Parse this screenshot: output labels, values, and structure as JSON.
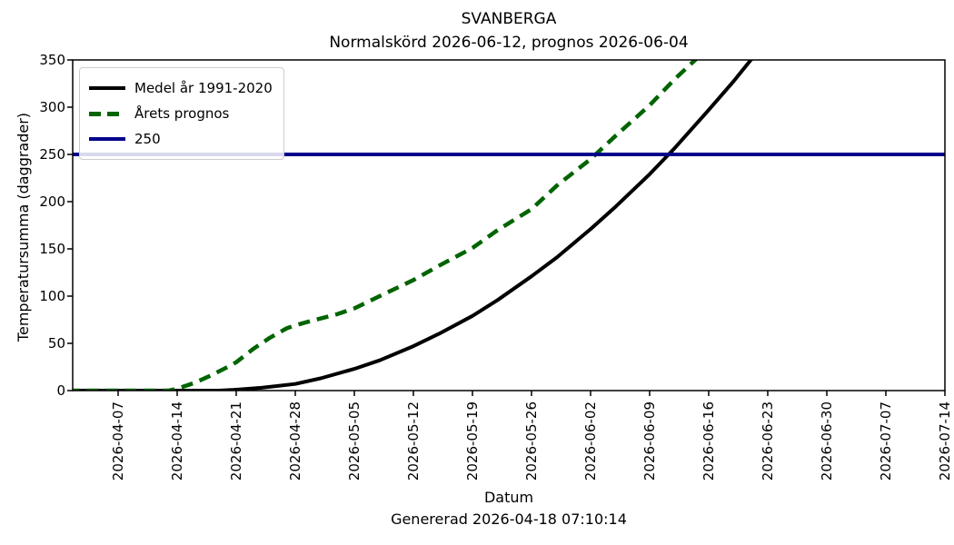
{
  "title": "SVANBERGA",
  "subtitle": "Normalskörd 2026-06-12, prognos 2026-06-04",
  "footer": "Genererad 2026-04-18 07:10:14",
  "background_color": "#ffffff",
  "frame_color": "#000000",
  "chart_data": {
    "type": "line",
    "title": "SVANBERGA",
    "subtitle": "Normalskörd 2026-06-12, prognos 2026-06-04",
    "xlabel": "Datum",
    "ylabel": "Temperatursumma (daggrader)",
    "footer": "Genererad 2026-04-18 07:10:14",
    "grid": false,
    "legend_position": "upper-left",
    "ylim": [
      0,
      350
    ],
    "y_ticks": [
      0,
      50,
      100,
      150,
      200,
      250,
      300,
      350
    ],
    "x_tick_labels": [
      "2026-04-07",
      "2026-04-14",
      "2026-04-21",
      "2026-04-28",
      "2026-05-05",
      "2026-05-12",
      "2026-05-19",
      "2026-05-26",
      "2026-06-02",
      "2026-06-09",
      "2026-06-16",
      "2026-06-23",
      "2026-06-30",
      "2026-07-07",
      "2026-07-14"
    ],
    "xlim": [
      "2026-04-01",
      "2026-07-14"
    ],
    "series": [
      {
        "name": "Medel år 1991-2020",
        "color": "#000000",
        "style": "solid",
        "line_width": 4,
        "points": [
          [
            "2026-04-01",
            0
          ],
          [
            "2026-04-07",
            0
          ],
          [
            "2026-04-13",
            0
          ],
          [
            "2026-04-19",
            0
          ],
          [
            "2026-04-21",
            1
          ],
          [
            "2026-04-24",
            3
          ],
          [
            "2026-04-28",
            7
          ],
          [
            "2026-05-01",
            13
          ],
          [
            "2026-05-05",
            23
          ],
          [
            "2026-05-08",
            32
          ],
          [
            "2026-05-12",
            47
          ],
          [
            "2026-05-15",
            60
          ],
          [
            "2026-05-19",
            79
          ],
          [
            "2026-05-22",
            96
          ],
          [
            "2026-05-26",
            121
          ],
          [
            "2026-05-29",
            141
          ],
          [
            "2026-06-02",
            171
          ],
          [
            "2026-06-05",
            195
          ],
          [
            "2026-06-09",
            229
          ],
          [
            "2026-06-12",
            257
          ],
          [
            "2026-06-16",
            297
          ],
          [
            "2026-06-19",
            328
          ],
          [
            "2026-06-21",
            350
          ],
          [
            "2026-06-23",
            369
          ]
        ]
      },
      {
        "name": "Årets prognos",
        "color": "#006400",
        "style": "dashed",
        "line_width": 4.5,
        "points": [
          [
            "2026-04-01",
            0
          ],
          [
            "2026-04-08",
            0
          ],
          [
            "2026-04-13",
            0
          ],
          [
            "2026-04-14",
            2
          ],
          [
            "2026-04-16",
            8
          ],
          [
            "2026-04-18",
            16
          ],
          [
            "2026-04-20",
            25
          ],
          [
            "2026-04-21",
            30
          ],
          [
            "2026-04-23",
            44
          ],
          [
            "2026-04-25",
            56
          ],
          [
            "2026-04-27",
            66
          ],
          [
            "2026-04-28",
            69
          ],
          [
            "2026-04-30",
            74
          ],
          [
            "2026-05-03",
            81
          ],
          [
            "2026-05-05",
            87
          ],
          [
            "2026-05-08",
            100
          ],
          [
            "2026-05-12",
            117
          ],
          [
            "2026-05-15",
            132
          ],
          [
            "2026-05-19",
            151
          ],
          [
            "2026-05-22",
            170
          ],
          [
            "2026-05-26",
            192
          ],
          [
            "2026-05-29",
            217
          ],
          [
            "2026-06-02",
            245
          ],
          [
            "2026-06-05",
            270
          ],
          [
            "2026-06-09",
            302
          ],
          [
            "2026-06-12",
            330
          ],
          [
            "2026-06-15",
            355
          ]
        ]
      },
      {
        "name": "250",
        "color": "#00008b",
        "style": "solid",
        "line_width": 4,
        "points": [
          [
            "2026-04-01",
            250
          ],
          [
            "2026-07-14",
            250
          ]
        ]
      }
    ]
  }
}
